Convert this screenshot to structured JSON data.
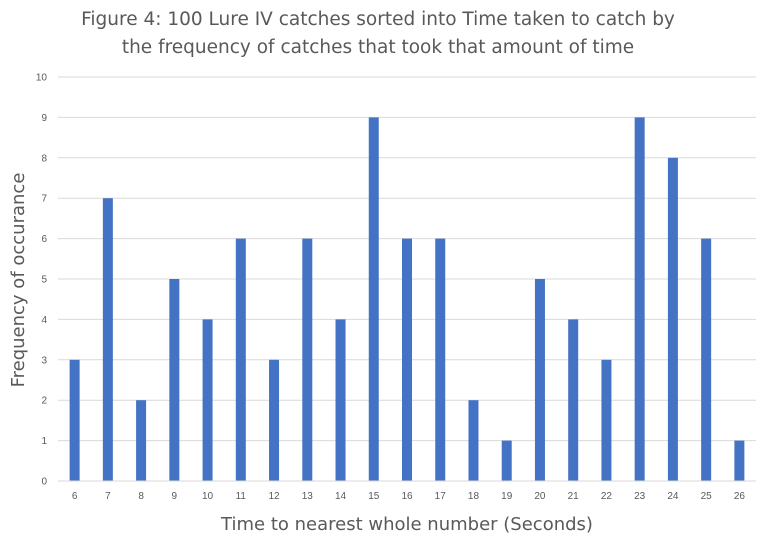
{
  "chart_data": {
    "type": "bar",
    "title_lines": [
      "Figure 4: 100 Lure IV catches sorted into Time taken to catch by",
      "the frequency of catches that took that amount of time"
    ],
    "xlabel": "Time to  nearest whole number (Seconds)",
    "ylabel": "Frequency of occurance",
    "categories": [
      "6",
      "7",
      "8",
      "9",
      "10",
      "11",
      "12",
      "13",
      "14",
      "15",
      "16",
      "17",
      "18",
      "19",
      "20",
      "21",
      "22",
      "23",
      "24",
      "25",
      "26"
    ],
    "values": [
      3,
      7,
      2,
      5,
      4,
      6,
      3,
      6,
      4,
      9,
      6,
      6,
      2,
      1,
      5,
      4,
      3,
      9,
      8,
      6,
      1
    ],
    "ylim": [
      0,
      10
    ],
    "yticks": [
      0,
      1,
      2,
      3,
      4,
      5,
      6,
      7,
      8,
      9,
      10
    ],
    "grid": true,
    "legend": "none",
    "bar_color": "#4472c4"
  }
}
